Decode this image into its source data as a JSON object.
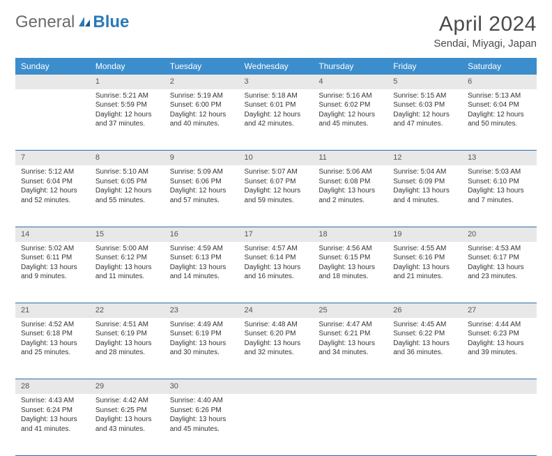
{
  "brand": {
    "prefix": "General",
    "suffix": "Blue"
  },
  "title": "April 2024",
  "location": "Sendai, Miyagi, Japan",
  "day_headers": [
    "Sunday",
    "Monday",
    "Tuesday",
    "Wednesday",
    "Thursday",
    "Friday",
    "Saturday"
  ],
  "colors": {
    "header_bg": "#3c8dcc",
    "header_text": "#ffffff",
    "daynum_bg": "#e8e8e8",
    "row_divider": "#2a6aa8",
    "text": "#333333",
    "title_text": "#4a4a4a",
    "logo_gray": "#6a6a6a",
    "logo_blue": "#2a7ab8"
  },
  "weeks": [
    [
      null,
      {
        "n": "1",
        "sr": "Sunrise: 5:21 AM",
        "ss": "Sunset: 5:59 PM",
        "dl1": "Daylight: 12 hours",
        "dl2": "and 37 minutes."
      },
      {
        "n": "2",
        "sr": "Sunrise: 5:19 AM",
        "ss": "Sunset: 6:00 PM",
        "dl1": "Daylight: 12 hours",
        "dl2": "and 40 minutes."
      },
      {
        "n": "3",
        "sr": "Sunrise: 5:18 AM",
        "ss": "Sunset: 6:01 PM",
        "dl1": "Daylight: 12 hours",
        "dl2": "and 42 minutes."
      },
      {
        "n": "4",
        "sr": "Sunrise: 5:16 AM",
        "ss": "Sunset: 6:02 PM",
        "dl1": "Daylight: 12 hours",
        "dl2": "and 45 minutes."
      },
      {
        "n": "5",
        "sr": "Sunrise: 5:15 AM",
        "ss": "Sunset: 6:03 PM",
        "dl1": "Daylight: 12 hours",
        "dl2": "and 47 minutes."
      },
      {
        "n": "6",
        "sr": "Sunrise: 5:13 AM",
        "ss": "Sunset: 6:04 PM",
        "dl1": "Daylight: 12 hours",
        "dl2": "and 50 minutes."
      }
    ],
    [
      {
        "n": "7",
        "sr": "Sunrise: 5:12 AM",
        "ss": "Sunset: 6:04 PM",
        "dl1": "Daylight: 12 hours",
        "dl2": "and 52 minutes."
      },
      {
        "n": "8",
        "sr": "Sunrise: 5:10 AM",
        "ss": "Sunset: 6:05 PM",
        "dl1": "Daylight: 12 hours",
        "dl2": "and 55 minutes."
      },
      {
        "n": "9",
        "sr": "Sunrise: 5:09 AM",
        "ss": "Sunset: 6:06 PM",
        "dl1": "Daylight: 12 hours",
        "dl2": "and 57 minutes."
      },
      {
        "n": "10",
        "sr": "Sunrise: 5:07 AM",
        "ss": "Sunset: 6:07 PM",
        "dl1": "Daylight: 12 hours",
        "dl2": "and 59 minutes."
      },
      {
        "n": "11",
        "sr": "Sunrise: 5:06 AM",
        "ss": "Sunset: 6:08 PM",
        "dl1": "Daylight: 13 hours",
        "dl2": "and 2 minutes."
      },
      {
        "n": "12",
        "sr": "Sunrise: 5:04 AM",
        "ss": "Sunset: 6:09 PM",
        "dl1": "Daylight: 13 hours",
        "dl2": "and 4 minutes."
      },
      {
        "n": "13",
        "sr": "Sunrise: 5:03 AM",
        "ss": "Sunset: 6:10 PM",
        "dl1": "Daylight: 13 hours",
        "dl2": "and 7 minutes."
      }
    ],
    [
      {
        "n": "14",
        "sr": "Sunrise: 5:02 AM",
        "ss": "Sunset: 6:11 PM",
        "dl1": "Daylight: 13 hours",
        "dl2": "and 9 minutes."
      },
      {
        "n": "15",
        "sr": "Sunrise: 5:00 AM",
        "ss": "Sunset: 6:12 PM",
        "dl1": "Daylight: 13 hours",
        "dl2": "and 11 minutes."
      },
      {
        "n": "16",
        "sr": "Sunrise: 4:59 AM",
        "ss": "Sunset: 6:13 PM",
        "dl1": "Daylight: 13 hours",
        "dl2": "and 14 minutes."
      },
      {
        "n": "17",
        "sr": "Sunrise: 4:57 AM",
        "ss": "Sunset: 6:14 PM",
        "dl1": "Daylight: 13 hours",
        "dl2": "and 16 minutes."
      },
      {
        "n": "18",
        "sr": "Sunrise: 4:56 AM",
        "ss": "Sunset: 6:15 PM",
        "dl1": "Daylight: 13 hours",
        "dl2": "and 18 minutes."
      },
      {
        "n": "19",
        "sr": "Sunrise: 4:55 AM",
        "ss": "Sunset: 6:16 PM",
        "dl1": "Daylight: 13 hours",
        "dl2": "and 21 minutes."
      },
      {
        "n": "20",
        "sr": "Sunrise: 4:53 AM",
        "ss": "Sunset: 6:17 PM",
        "dl1": "Daylight: 13 hours",
        "dl2": "and 23 minutes."
      }
    ],
    [
      {
        "n": "21",
        "sr": "Sunrise: 4:52 AM",
        "ss": "Sunset: 6:18 PM",
        "dl1": "Daylight: 13 hours",
        "dl2": "and 25 minutes."
      },
      {
        "n": "22",
        "sr": "Sunrise: 4:51 AM",
        "ss": "Sunset: 6:19 PM",
        "dl1": "Daylight: 13 hours",
        "dl2": "and 28 minutes."
      },
      {
        "n": "23",
        "sr": "Sunrise: 4:49 AM",
        "ss": "Sunset: 6:19 PM",
        "dl1": "Daylight: 13 hours",
        "dl2": "and 30 minutes."
      },
      {
        "n": "24",
        "sr": "Sunrise: 4:48 AM",
        "ss": "Sunset: 6:20 PM",
        "dl1": "Daylight: 13 hours",
        "dl2": "and 32 minutes."
      },
      {
        "n": "25",
        "sr": "Sunrise: 4:47 AM",
        "ss": "Sunset: 6:21 PM",
        "dl1": "Daylight: 13 hours",
        "dl2": "and 34 minutes."
      },
      {
        "n": "26",
        "sr": "Sunrise: 4:45 AM",
        "ss": "Sunset: 6:22 PM",
        "dl1": "Daylight: 13 hours",
        "dl2": "and 36 minutes."
      },
      {
        "n": "27",
        "sr": "Sunrise: 4:44 AM",
        "ss": "Sunset: 6:23 PM",
        "dl1": "Daylight: 13 hours",
        "dl2": "and 39 minutes."
      }
    ],
    [
      {
        "n": "28",
        "sr": "Sunrise: 4:43 AM",
        "ss": "Sunset: 6:24 PM",
        "dl1": "Daylight: 13 hours",
        "dl2": "and 41 minutes."
      },
      {
        "n": "29",
        "sr": "Sunrise: 4:42 AM",
        "ss": "Sunset: 6:25 PM",
        "dl1": "Daylight: 13 hours",
        "dl2": "and 43 minutes."
      },
      {
        "n": "30",
        "sr": "Sunrise: 4:40 AM",
        "ss": "Sunset: 6:26 PM",
        "dl1": "Daylight: 13 hours",
        "dl2": "and 45 minutes."
      },
      null,
      null,
      null,
      null
    ]
  ]
}
